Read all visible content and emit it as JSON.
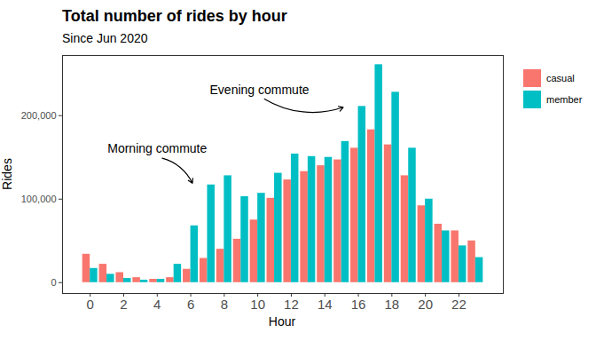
{
  "chart_data": {
    "type": "bar",
    "title": "Total number of rides by hour",
    "subtitle": "Since Jun 2020",
    "x_label": "Hour",
    "y_label": "Rides",
    "x": [
      0,
      1,
      2,
      3,
      4,
      5,
      6,
      7,
      8,
      9,
      10,
      11,
      12,
      13,
      14,
      15,
      16,
      17,
      18,
      19,
      20,
      21,
      22,
      23
    ],
    "series": [
      {
        "name": "casual",
        "color": "#F8766D",
        "values": [
          34000,
          22000,
          12000,
          6000,
          4000,
          6000,
          16000,
          29000,
          40000,
          52000,
          75000,
          101000,
          123000,
          133000,
          140000,
          147000,
          161000,
          183000,
          165000,
          128000,
          92000,
          70000,
          62000,
          50000
        ]
      },
      {
        "name": "member",
        "color": "#00BFC4",
        "values": [
          17000,
          10000,
          5000,
          3000,
          4000,
          22000,
          68000,
          117000,
          128000,
          103000,
          107000,
          131000,
          154000,
          151000,
          150000,
          169000,
          211000,
          261000,
          228000,
          161000,
          100000,
          62000,
          44000,
          30000
        ]
      }
    ],
    "xlim": [
      -1.65,
      24.65
    ],
    "xticks": [
      0,
      2,
      4,
      6,
      8,
      10,
      12,
      14,
      16,
      18,
      20,
      22
    ],
    "ylim": [
      -13000,
      272000
    ],
    "yticks": [
      {
        "value": 0,
        "label": "0"
      },
      {
        "value": 100000,
        "label": "100,000"
      },
      {
        "value": 200000,
        "label": "200,000"
      }
    ],
    "grid": false,
    "legend": "right",
    "annotations": [
      "Morning commute",
      "Evening commute"
    ]
  }
}
